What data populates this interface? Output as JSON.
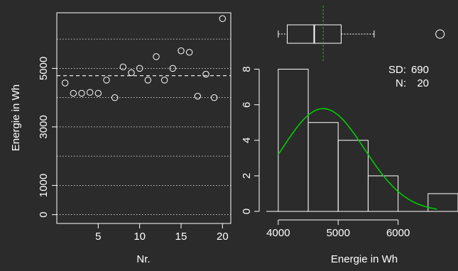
{
  "colors": {
    "background": "#2b2b2b",
    "foreground": "#ffffff",
    "density": "#00cc00",
    "median_line": "#00cc00"
  },
  "chart_data": [
    {
      "type": "scatter",
      "xlabel": "Nr.",
      "ylabel": "Energie in Wh",
      "xlim": [
        0,
        21
      ],
      "ylim": [
        -300,
        6900
      ],
      "xticks": [
        5,
        10,
        15,
        20
      ],
      "yticks": [
        0,
        1000,
        3000,
        5000
      ],
      "grid": "dotted horizontal",
      "reference_line": 4750,
      "x": [
        1,
        2,
        3,
        4,
        5,
        6,
        7,
        8,
        9,
        10,
        11,
        12,
        13,
        14,
        15,
        16,
        17,
        18,
        19,
        20
      ],
      "y": [
        4500,
        4150,
        4150,
        4180,
        4150,
        4600,
        4000,
        5050,
        4850,
        5000,
        4600,
        5400,
        4600,
        5000,
        5600,
        5550,
        4050,
        4800,
        4000,
        6700
      ]
    },
    {
      "type": "bar",
      "xlabel": "Energie in Wh",
      "xlim": [
        3800,
        7000
      ],
      "ylim": [
        0,
        8.5
      ],
      "xticks": [
        4000,
        5000,
        6000
      ],
      "yticks": [
        0,
        2,
        4,
        6,
        8
      ],
      "bins": [
        {
          "from": 4000,
          "to": 4500,
          "count": 8
        },
        {
          "from": 4500,
          "to": 5000,
          "count": 5
        },
        {
          "from": 5000,
          "to": 5500,
          "count": 4
        },
        {
          "from": 5500,
          "to": 6000,
          "count": 2
        },
        {
          "from": 6500,
          "to": 7000,
          "count": 1
        }
      ],
      "density_curve": {
        "mean": 4750,
        "sd": 690,
        "scale": 1.0
      },
      "stats": {
        "sd_label": "SD:",
        "sd_value": "690",
        "n_label": "N:",
        "n_value": "20"
      }
    },
    {
      "type": "boxplot",
      "whisker_low": 4000,
      "q1": 4150,
      "median": 4600,
      "q3": 5050,
      "whisker_high": 5600,
      "outliers": [
        6700
      ],
      "mean_line": 4750
    }
  ]
}
